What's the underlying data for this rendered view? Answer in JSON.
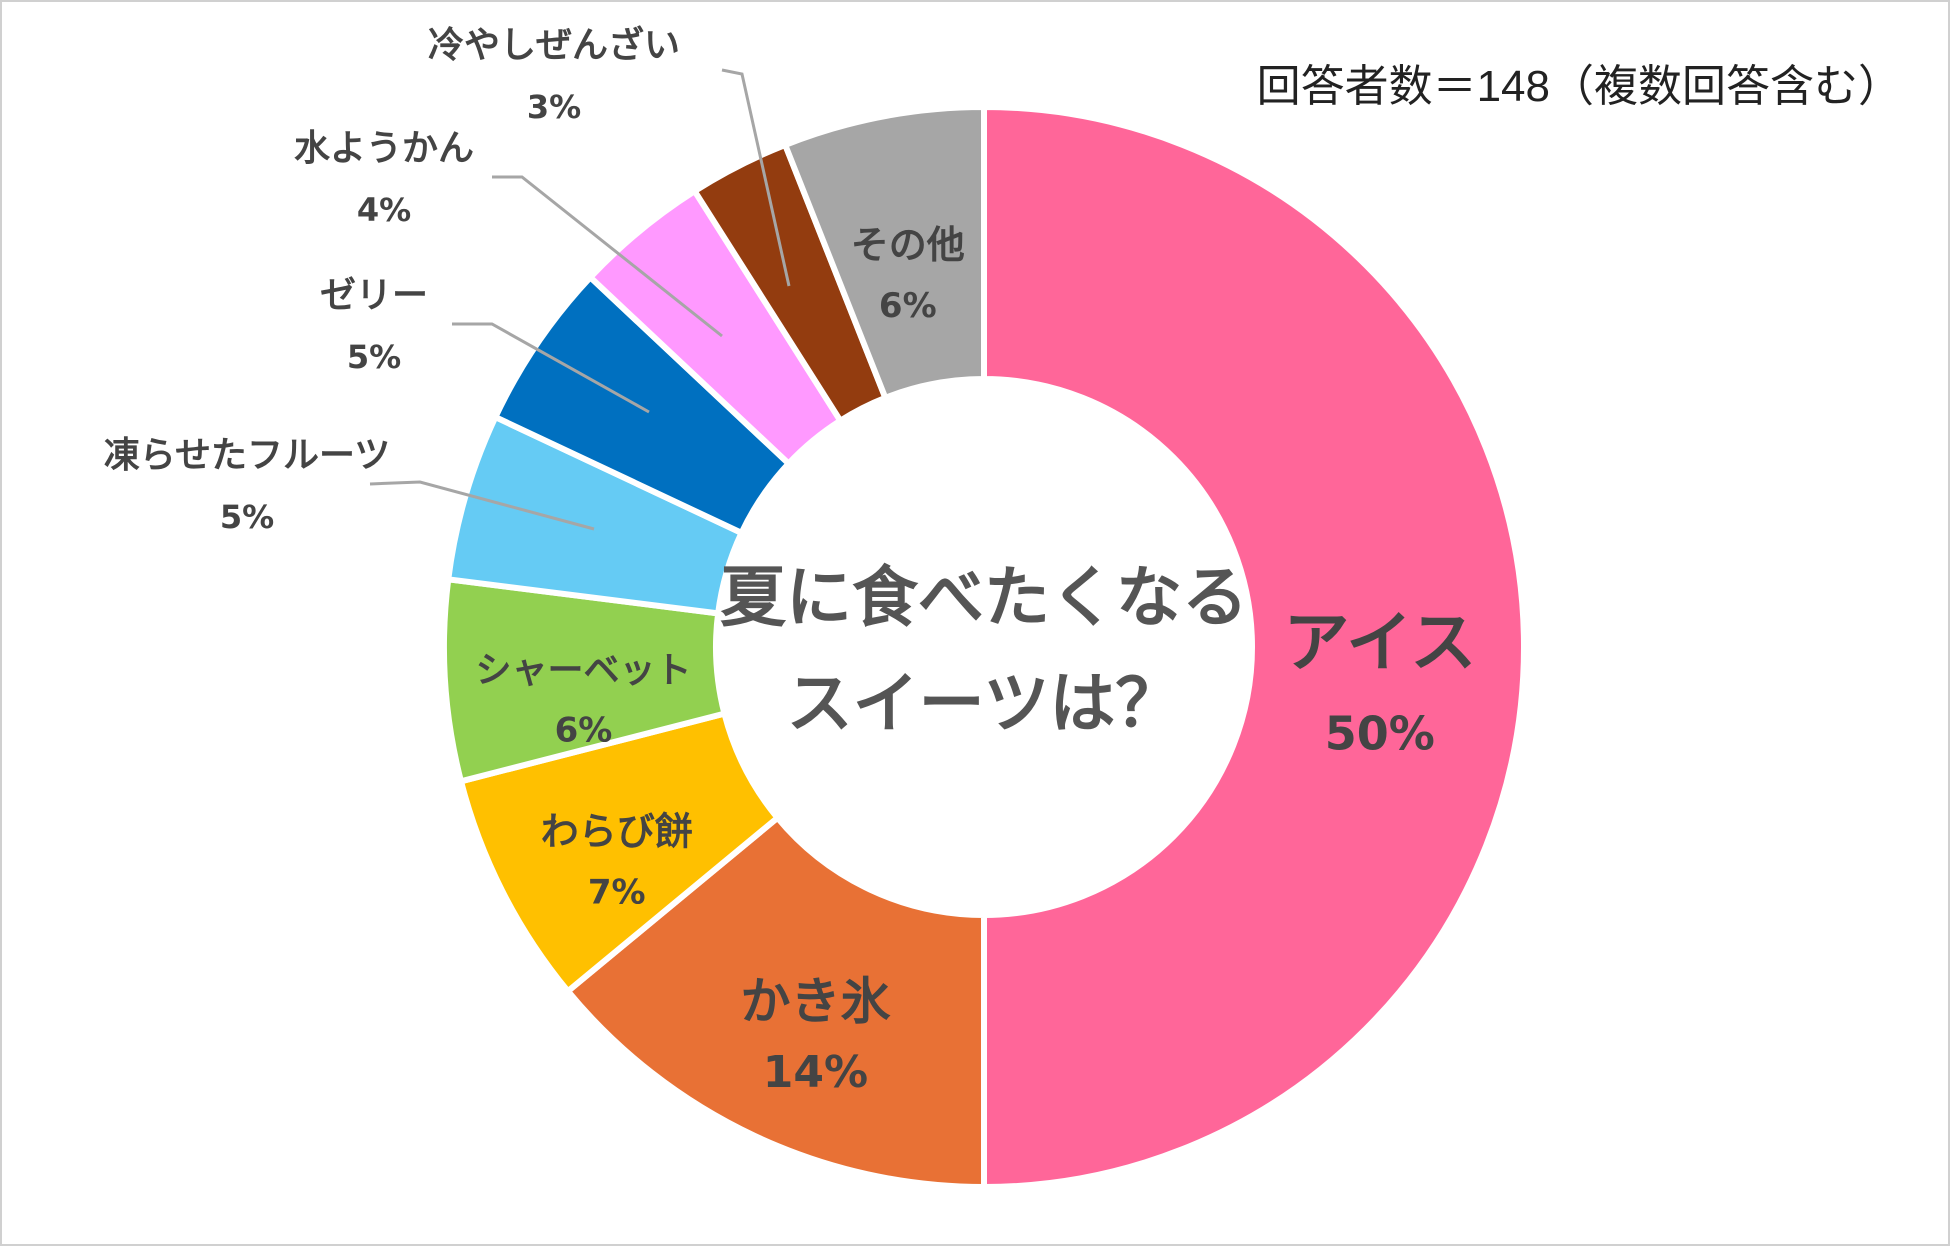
{
  "note": "回答者数＝148（複数回答含む）",
  "chart_data": {
    "type": "pie",
    "subtype": "donut",
    "center_title_line1": "夏に食べたくなる",
    "center_title_line2": "スイーツは？",
    "legend": "none",
    "slices": [
      {
        "label": "アイス",
        "value_label": "50%",
        "value": 50,
        "color": "#FF6699"
      },
      {
        "label": "かき氷",
        "value_label": "14%",
        "value": 14,
        "color": "#E87135"
      },
      {
        "label": "わらび餅",
        "value_label": "7%",
        "value": 7,
        "color": "#FFC000"
      },
      {
        "label": "シャーベット",
        "value_label": "6%",
        "value": 6,
        "color": "#92D050"
      },
      {
        "label": "凍らせたフルーツ",
        "value_label": "5%",
        "value": 5,
        "color": "#65CBF4"
      },
      {
        "label": "ゼリー",
        "value_label": "5%",
        "value": 5,
        "color": "#0070C0"
      },
      {
        "label": "水ようかん",
        "value_label": "4%",
        "value": 4,
        "color": "#FF99FF"
      },
      {
        "label": "冷やしぜんざい",
        "value_label": "3%",
        "value": 3,
        "color": "#933C0F"
      },
      {
        "label": "その他",
        "value_label": "6%",
        "value": 6,
        "color": "#A6A6A6"
      }
    ]
  }
}
